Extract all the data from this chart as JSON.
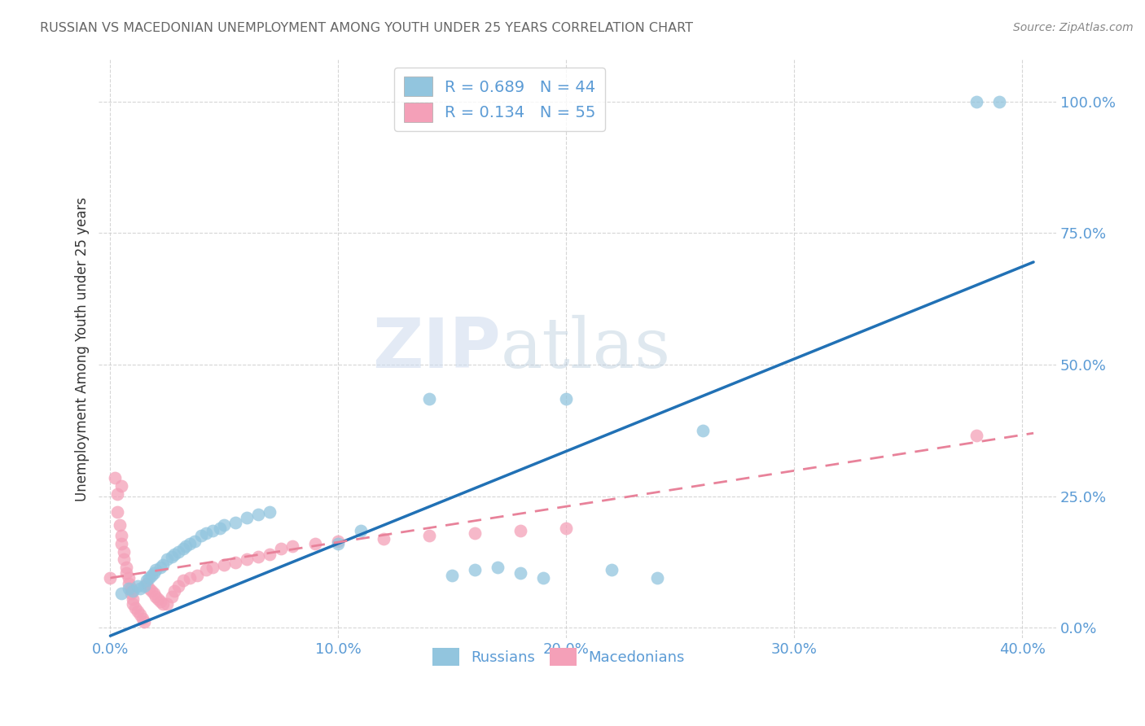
{
  "title": "RUSSIAN VS MACEDONIAN UNEMPLOYMENT AMONG YOUTH UNDER 25 YEARS CORRELATION CHART",
  "source": "Source: ZipAtlas.com",
  "ylabel": "Unemployment Among Youth under 25 years",
  "xlabel_ticks": [
    "0.0%",
    "10.0%",
    "20.0%",
    "30.0%",
    "40.0%"
  ],
  "ylabel_ticks": [
    "0.0%",
    "25.0%",
    "50.0%",
    "75.0%",
    "100.0%"
  ],
  "xlim": [
    -0.005,
    0.415
  ],
  "ylim": [
    -0.02,
    1.08
  ],
  "legend_label_russians": "Russians",
  "legend_label_macedonians": "Macedonians",
  "russian_color": "#92c5de",
  "macedonian_color": "#f4a0b8",
  "russian_scatter": [
    [
      0.005,
      0.065
    ],
    [
      0.008,
      0.075
    ],
    [
      0.01,
      0.07
    ],
    [
      0.012,
      0.08
    ],
    [
      0.013,
      0.075
    ],
    [
      0.015,
      0.08
    ],
    [
      0.016,
      0.09
    ],
    [
      0.017,
      0.095
    ],
    [
      0.018,
      0.1
    ],
    [
      0.019,
      0.105
    ],
    [
      0.02,
      0.11
    ],
    [
      0.022,
      0.115
    ],
    [
      0.023,
      0.12
    ],
    [
      0.025,
      0.13
    ],
    [
      0.027,
      0.135
    ],
    [
      0.028,
      0.14
    ],
    [
      0.03,
      0.145
    ],
    [
      0.032,
      0.15
    ],
    [
      0.033,
      0.155
    ],
    [
      0.035,
      0.16
    ],
    [
      0.037,
      0.165
    ],
    [
      0.04,
      0.175
    ],
    [
      0.042,
      0.18
    ],
    [
      0.045,
      0.185
    ],
    [
      0.048,
      0.19
    ],
    [
      0.05,
      0.195
    ],
    [
      0.055,
      0.2
    ],
    [
      0.06,
      0.21
    ],
    [
      0.065,
      0.215
    ],
    [
      0.07,
      0.22
    ],
    [
      0.14,
      0.435
    ],
    [
      0.2,
      0.435
    ],
    [
      0.1,
      0.16
    ],
    [
      0.11,
      0.185
    ],
    [
      0.15,
      0.1
    ],
    [
      0.16,
      0.11
    ],
    [
      0.17,
      0.115
    ],
    [
      0.18,
      0.105
    ],
    [
      0.19,
      0.095
    ],
    [
      0.22,
      0.11
    ],
    [
      0.24,
      0.095
    ],
    [
      0.26,
      0.375
    ],
    [
      0.38,
      1.0
    ],
    [
      0.39,
      1.0
    ]
  ],
  "macedonian_scatter": [
    [
      0.0,
      0.095
    ],
    [
      0.002,
      0.285
    ],
    [
      0.003,
      0.255
    ],
    [
      0.003,
      0.22
    ],
    [
      0.004,
      0.195
    ],
    [
      0.005,
      0.175
    ],
    [
      0.005,
      0.16
    ],
    [
      0.006,
      0.145
    ],
    [
      0.006,
      0.13
    ],
    [
      0.007,
      0.115
    ],
    [
      0.007,
      0.105
    ],
    [
      0.008,
      0.095
    ],
    [
      0.008,
      0.085
    ],
    [
      0.009,
      0.075
    ],
    [
      0.009,
      0.065
    ],
    [
      0.01,
      0.055
    ],
    [
      0.01,
      0.045
    ],
    [
      0.011,
      0.038
    ],
    [
      0.012,
      0.032
    ],
    [
      0.013,
      0.025
    ],
    [
      0.014,
      0.018
    ],
    [
      0.015,
      0.012
    ],
    [
      0.016,
      0.085
    ],
    [
      0.017,
      0.075
    ],
    [
      0.018,
      0.07
    ],
    [
      0.019,
      0.065
    ],
    [
      0.02,
      0.06
    ],
    [
      0.021,
      0.055
    ],
    [
      0.022,
      0.05
    ],
    [
      0.023,
      0.045
    ],
    [
      0.025,
      0.045
    ],
    [
      0.027,
      0.06
    ],
    [
      0.028,
      0.07
    ],
    [
      0.03,
      0.08
    ],
    [
      0.032,
      0.09
    ],
    [
      0.035,
      0.095
    ],
    [
      0.038,
      0.1
    ],
    [
      0.042,
      0.11
    ],
    [
      0.045,
      0.115
    ],
    [
      0.05,
      0.12
    ],
    [
      0.055,
      0.125
    ],
    [
      0.06,
      0.13
    ],
    [
      0.065,
      0.135
    ],
    [
      0.07,
      0.14
    ],
    [
      0.075,
      0.15
    ],
    [
      0.08,
      0.155
    ],
    [
      0.09,
      0.16
    ],
    [
      0.1,
      0.165
    ],
    [
      0.12,
      0.17
    ],
    [
      0.14,
      0.175
    ],
    [
      0.16,
      0.18
    ],
    [
      0.18,
      0.185
    ],
    [
      0.2,
      0.19
    ],
    [
      0.38,
      0.365
    ],
    [
      0.005,
      0.27
    ]
  ],
  "russian_line_x": [
    0.0,
    0.405
  ],
  "russian_line_y": [
    -0.015,
    0.695
  ],
  "macedonian_line_x": [
    0.0,
    0.405
  ],
  "macedonian_line_y": [
    0.095,
    0.37
  ],
  "watermark_zip": "ZIP",
  "watermark_atlas": "atlas",
  "title_color": "#666666",
  "tick_color": "#5b9bd5",
  "grid_color": "#cccccc",
  "source_color": "#888888",
  "legend_r1": "R = 0.689",
  "legend_n1": "N = 44",
  "legend_r2": "R = 0.134",
  "legend_n2": "N = 55"
}
